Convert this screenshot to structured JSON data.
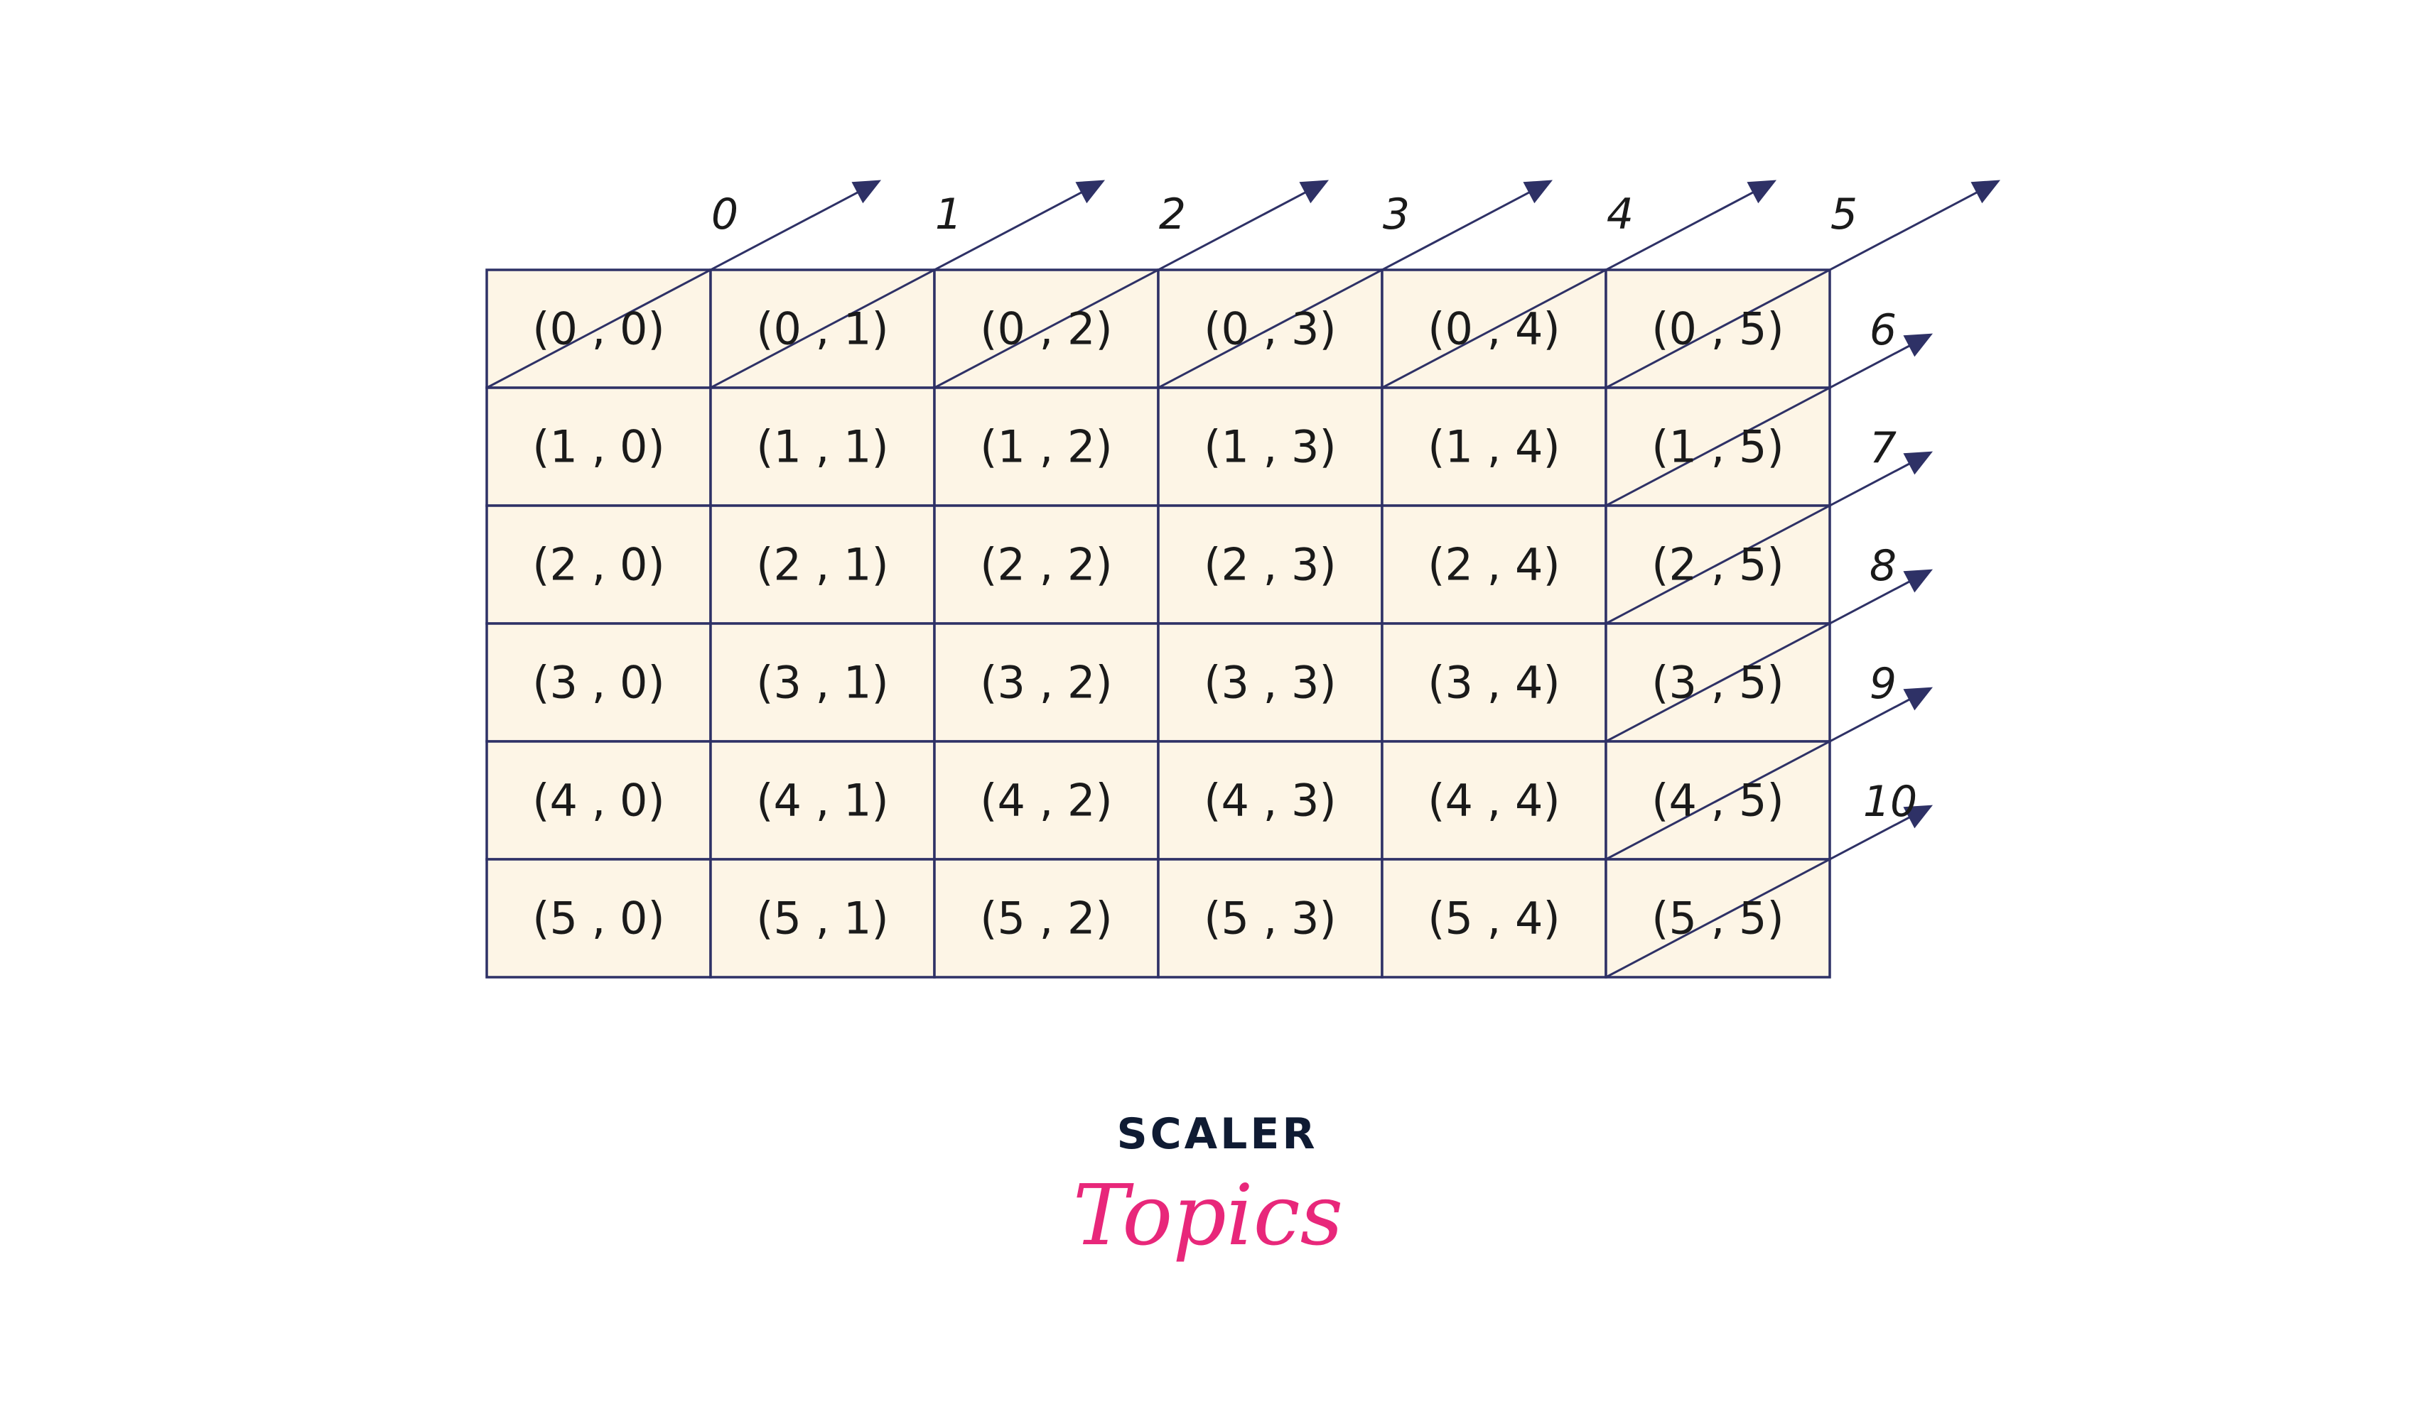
{
  "grid": {
    "rows": 6,
    "cols": 6,
    "cells": [
      [
        "(0 , 0)",
        "(0 , 1)",
        "(0 , 2)",
        "(0 , 3)",
        "(0 , 4)",
        "(0 , 5)"
      ],
      [
        "(1 , 0)",
        "(1 , 1)",
        "(1 , 2)",
        "(1 , 3)",
        "(1 , 4)",
        "(1 , 5)"
      ],
      [
        "(2 , 0)",
        "(2 , 1)",
        "(2 , 2)",
        "(2 , 3)",
        "(2 , 4)",
        "(2 , 5)"
      ],
      [
        "(3 , 0)",
        "(3 , 1)",
        "(3 , 2)",
        "(3 , 3)",
        "(3 , 4)",
        "(3 , 5)"
      ],
      [
        "(4 , 0)",
        "(4 , 1)",
        "(4 , 2)",
        "(4 , 3)",
        "(4 , 4)",
        "(4 , 5)"
      ],
      [
        "(5 , 0)",
        "(5 , 1)",
        "(5 , 2)",
        "(5 , 3)",
        "(5 , 4)",
        "(5 , 5)"
      ]
    ]
  },
  "diagonal_indices": [
    "0",
    "1",
    "2",
    "3",
    "4",
    "5",
    "6",
    "7",
    "8",
    "9",
    "10"
  ],
  "colors": {
    "cell_fill": "#fdf5e6",
    "line": "#2e3166",
    "brand_dark": "#0f1b33",
    "brand_pink": "#e8277a"
  },
  "logo": {
    "line1": "SCALER",
    "line2": "Topics"
  }
}
